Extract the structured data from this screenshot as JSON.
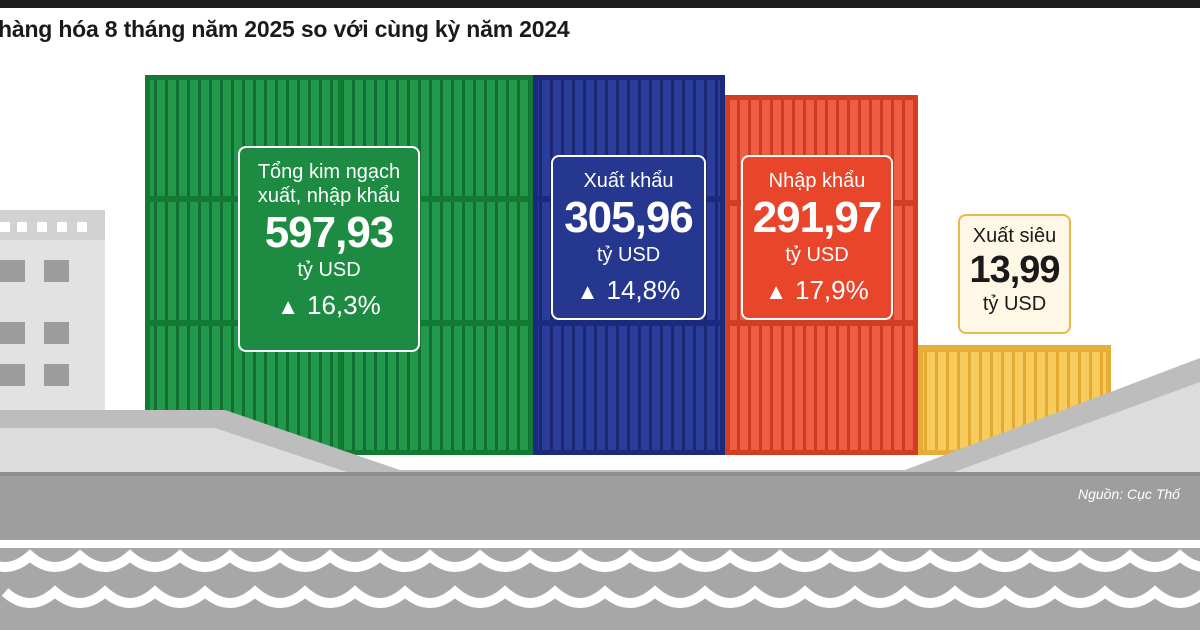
{
  "header": {
    "title": "hàng hóa  8 tháng năm 2025 so với cùng kỳ năm 2024"
  },
  "cards": {
    "total": {
      "label_line1": "Tổng kim ngạch",
      "label_line2": "xuất, nhập khẩu",
      "value": "597,93",
      "unit": "tỷ USD",
      "change": "16,3%",
      "arrow": "▲"
    },
    "export": {
      "label": "Xuất khẩu",
      "value": "305,96",
      "unit": "tỷ USD",
      "change": "14,8%",
      "arrow": "▲"
    },
    "import": {
      "label": "Nhập khẩu",
      "value": "291,97",
      "unit": "tỷ USD",
      "change": "17,9%",
      "arrow": "▲"
    },
    "surplus": {
      "label": "Xuất siêu",
      "value": "13,99",
      "unit": "tỷ USD"
    }
  },
  "source": "Nguồn: Cục Thố",
  "colors": {
    "green": "#1d8c42",
    "blue": "#26378f",
    "red": "#e8452b",
    "yellow": "#f4c14e",
    "hull_gray": "#9e9e9e",
    "sea_gray": "#a7a7a7"
  },
  "icons": {
    "increase": "triangle-up-icon"
  }
}
